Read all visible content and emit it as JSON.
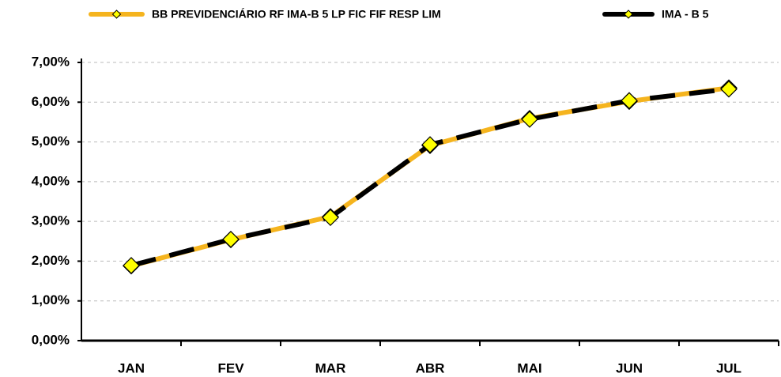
{
  "chart_data": {
    "type": "line",
    "categories": [
      "JAN",
      "FEV",
      "MAR",
      "ABR",
      "MAI",
      "JUN",
      "JUL"
    ],
    "series": [
      {
        "name": "BB PREVIDENCIÁRIO RF IMA-B 5 LP FIC FIF RESP LIM",
        "color": "#F5B41E",
        "marker_color": "#FFFF00",
        "dashed": false,
        "values": [
          1.88,
          2.54,
          3.12,
          4.91,
          5.59,
          6.02,
          6.36
        ]
      },
      {
        "name": "IMA - B 5",
        "color": "#000000",
        "marker_color": "#FFFF00",
        "dashed": true,
        "values": [
          1.89,
          2.55,
          3.1,
          4.93,
          5.57,
          6.04,
          6.33
        ]
      }
    ],
    "ylim": [
      0,
      7
    ],
    "yticks": [
      {
        "value": 0,
        "label": "0,00%"
      },
      {
        "value": 1,
        "label": "1,00%"
      },
      {
        "value": 2,
        "label": "2,00%"
      },
      {
        "value": 3,
        "label": "3,00%"
      },
      {
        "value": 4,
        "label": "4,00%"
      },
      {
        "value": 5,
        "label": "5,00%"
      },
      {
        "value": 6,
        "label": "6,00%"
      },
      {
        "value": 7,
        "label": "7,00%"
      }
    ],
    "grid": true
  }
}
